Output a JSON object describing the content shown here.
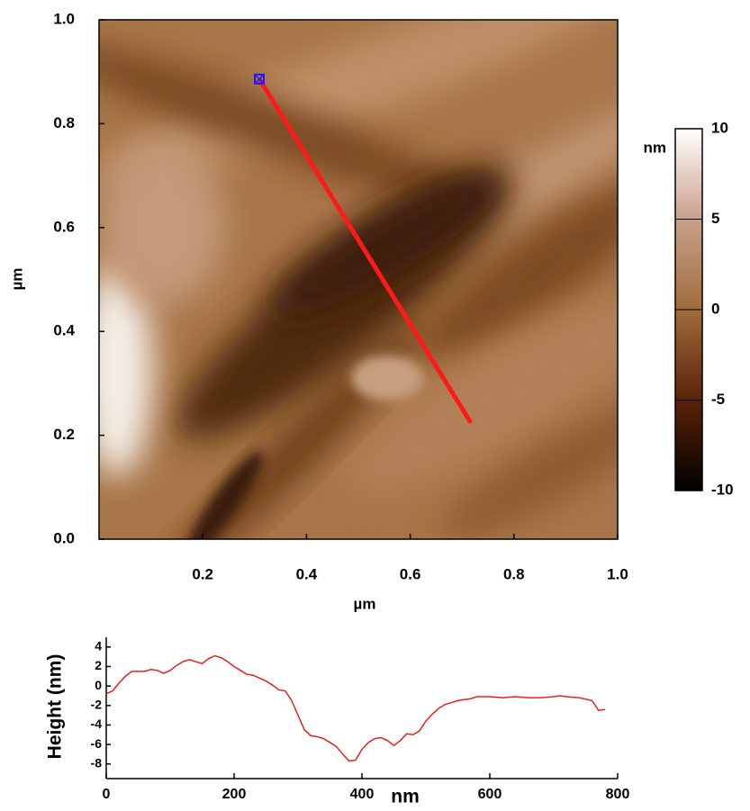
{
  "chart_data": [
    {
      "type": "heatmap",
      "xlabel": "µm",
      "ylabel": "µm",
      "xlim": [
        0,
        1
      ],
      "ylim": [
        0,
        1
      ],
      "xticks": [
        0.2,
        0.4,
        0.6,
        0.8,
        {
          "value": 1,
          "label": "1.0"
        }
      ],
      "yticks": [
        {
          "value": 0,
          "label": "0.0"
        },
        0.2,
        0.4,
        0.6,
        0.8,
        {
          "value": 1,
          "label": "1.0"
        }
      ],
      "colorbar": {
        "label": "nm",
        "lim": [
          -10,
          10
        ],
        "ticks": [
          -10,
          -5,
          0,
          5,
          10
        ],
        "colormap": [
          "#000000",
          "#5a2208",
          "#a06c3c",
          "#c9a08c",
          "#ffffff"
        ]
      },
      "line": {
        "x": [
          0.309,
          0.717
        ],
        "y": [
          0.886,
          0.224
        ],
        "color": "#ff1a1a",
        "marker_color": "#1a1aff"
      }
    },
    {
      "type": "line",
      "xlabel": "nm",
      "ylabel": "Height (nm)",
      "xlim": [
        0,
        800
      ],
      "ylim": [
        -9.5,
        5
      ],
      "xticks": [
        0,
        200,
        400,
        600,
        800
      ],
      "yticks": [
        -8,
        -6,
        -4,
        -2,
        0,
        2,
        4
      ],
      "color": "#e8201a",
      "x": [
        0,
        10,
        20,
        30,
        40,
        60,
        70,
        80,
        90,
        100,
        110,
        120,
        130,
        140,
        150,
        160,
        170,
        180,
        190,
        200,
        210,
        220,
        230,
        240,
        250,
        260,
        270,
        280,
        290,
        300,
        310,
        320,
        330,
        340,
        350,
        360,
        370,
        380,
        390,
        400,
        410,
        420,
        430,
        440,
        450,
        460,
        470,
        480,
        490,
        500,
        510,
        520,
        530,
        540,
        550,
        560,
        570,
        580,
        600,
        620,
        640,
        660,
        680,
        700,
        710,
        720,
        740,
        760,
        770,
        780
      ],
      "values": [
        -0.8,
        -0.5,
        0.3,
        1.0,
        1.5,
        1.5,
        1.7,
        1.6,
        1.3,
        1.6,
        2.1,
        2.5,
        2.7,
        2.5,
        2.3,
        2.8,
        3.1,
        2.9,
        2.5,
        2.0,
        1.6,
        1.2,
        1.1,
        0.8,
        0.5,
        0.1,
        -0.4,
        -0.5,
        -1.5,
        -3.0,
        -4.5,
        -5.1,
        -5.2,
        -5.4,
        -5.8,
        -6.2,
        -7.0,
        -7.7,
        -7.6,
        -6.5,
        -5.8,
        -5.4,
        -5.3,
        -5.6,
        -6.1,
        -5.6,
        -4.9,
        -5.0,
        -4.6,
        -3.6,
        -2.9,
        -2.3,
        -1.9,
        -1.7,
        -1.5,
        -1.4,
        -1.3,
        -1.1,
        -1.1,
        -1.2,
        -1.1,
        -1.2,
        -1.2,
        -1.1,
        -1.0,
        -1.1,
        -1.2,
        -1.5,
        -2.5,
        -2.4
      ]
    }
  ]
}
